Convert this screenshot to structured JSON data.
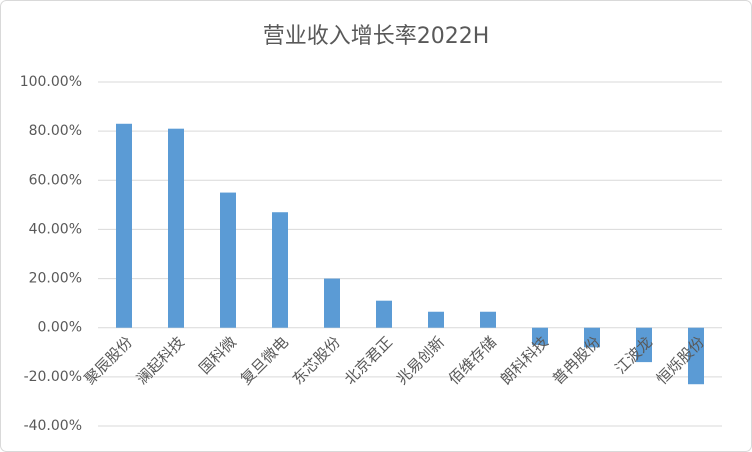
{
  "chart_data": {
    "type": "bar",
    "title": "营业收入增长率2022H",
    "categories": [
      "聚辰股份",
      "澜起科技",
      "国科微",
      "复旦微电",
      "东芯股份",
      "北京君正",
      "兆易创新",
      "佰维存储",
      "朗科科技",
      "普冉股份",
      "江波龙",
      "恒烁股份"
    ],
    "values": [
      83,
      81,
      55,
      47,
      20,
      11,
      6.5,
      6.5,
      -7,
      -8,
      -14,
      -23
    ],
    "color": "#5b9bd5",
    "ylim": [
      -40,
      100
    ],
    "yticks": [
      {
        "value": -40,
        "label": "-40.00%"
      },
      {
        "value": -20,
        "label": "-20.00%"
      },
      {
        "value": 0,
        "label": "0.00%"
      },
      {
        "value": 20,
        "label": "20.00%"
      },
      {
        "value": 40,
        "label": "40.00%"
      },
      {
        "value": 60,
        "label": "60.00%"
      },
      {
        "value": 80,
        "label": "80.00%"
      },
      {
        "value": 100,
        "label": "100.00%"
      }
    ],
    "grid": true
  }
}
